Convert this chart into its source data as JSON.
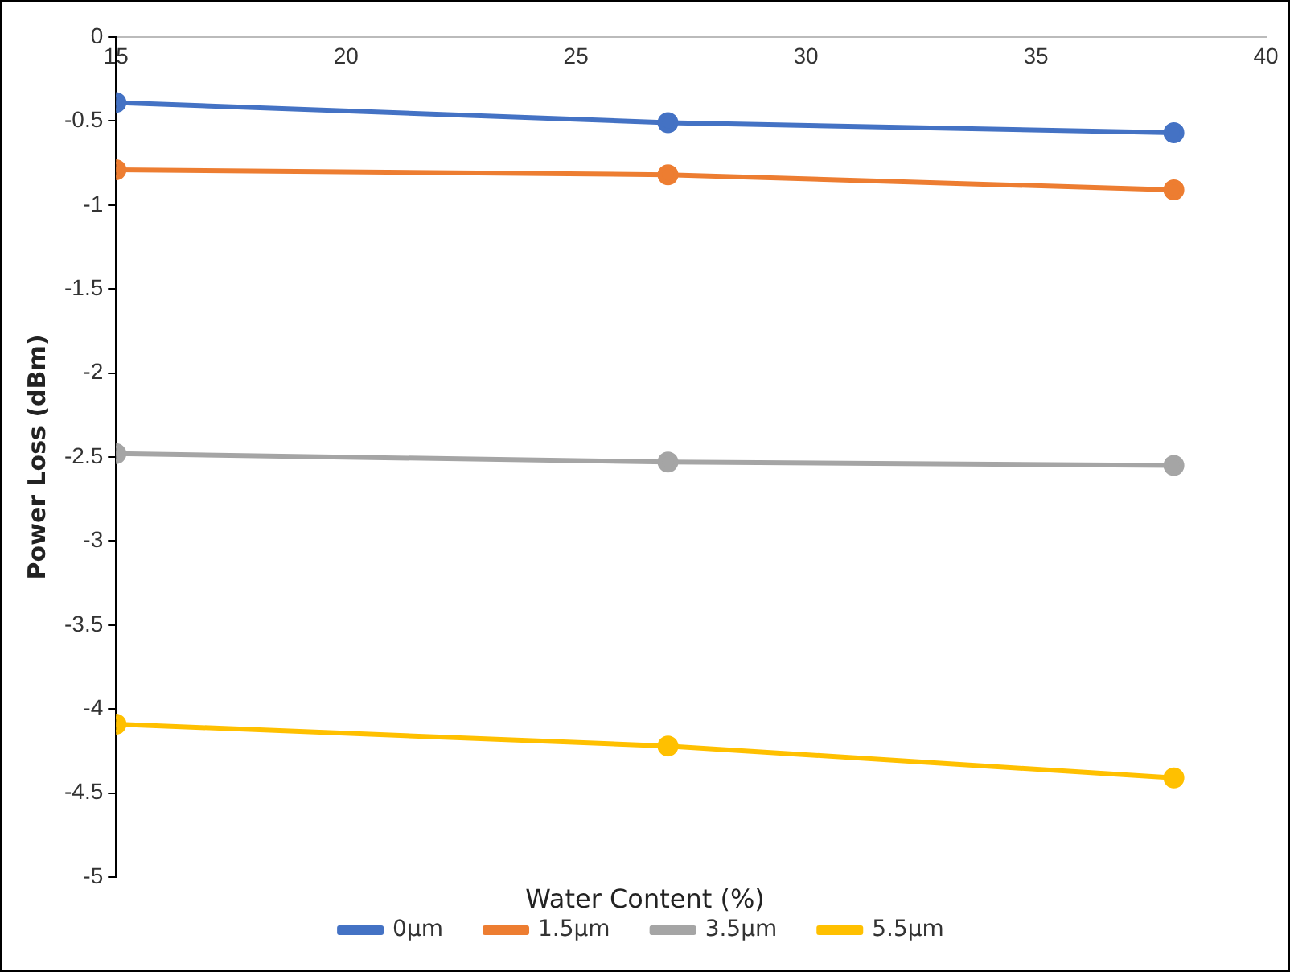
{
  "chart_data": {
    "type": "line",
    "xlabel": "Water Content (%)",
    "ylabel": "Power Loss (dBm)",
    "x": [
      15,
      27,
      38
    ],
    "series": [
      {
        "name": "0µm",
        "color": "#4472c4",
        "values": [
          -0.39,
          -0.51,
          -0.57
        ]
      },
      {
        "name": "1.5µm",
        "color": "#ed7d31",
        "values": [
          -0.79,
          -0.82,
          -0.91
        ]
      },
      {
        "name": "3.5µm",
        "color": "#a5a5a5",
        "values": [
          -2.48,
          -2.53,
          -2.55
        ]
      },
      {
        "name": "5.5µm",
        "color": "#ffc000",
        "values": [
          -4.09,
          -4.22,
          -4.41
        ]
      }
    ],
    "xlim": [
      15,
      40
    ],
    "xticks": [
      15,
      20,
      25,
      30,
      35,
      40
    ],
    "ylim": [
      -5,
      0
    ],
    "yticks": [
      0,
      -0.5,
      -1,
      -1.5,
      -2,
      -2.5,
      -3,
      -3.5,
      -4,
      -4.5,
      -5
    ],
    "grid": false,
    "legend": "bottom",
    "marker": "circle",
    "line_style": "solid"
  }
}
